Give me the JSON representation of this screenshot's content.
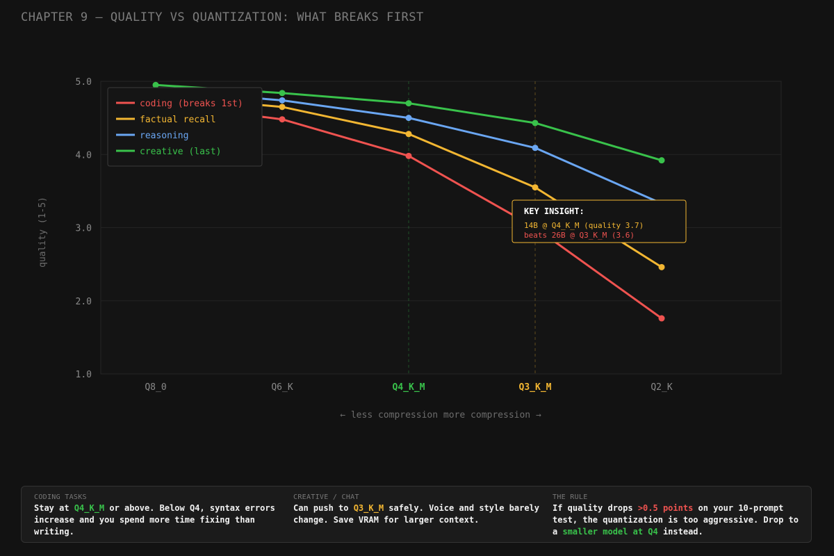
{
  "page": {
    "title": "CHAPTER 9 — QUALITY VS QUANTIZATION: WHAT BREAKS FIRST"
  },
  "chart_data": {
    "type": "line",
    "title": "",
    "categories": [
      "Q8_0",
      "Q6_K",
      "Q4_K_M",
      "Q3_K_M",
      "Q2_K"
    ],
    "highlighted_categories": [
      {
        "category": "Q4_K_M",
        "color": "#39c24b"
      },
      {
        "category": "Q3_K_M",
        "color": "#f2b632"
      }
    ],
    "ylabel": "quality (1-5)",
    "ylim": [
      1.0,
      5.0
    ],
    "yticks": [
      1.0,
      2.0,
      3.0,
      4.0,
      5.0
    ],
    "ytick_labels": [
      "1.0",
      "2.0",
      "3.0",
      "4.0",
      "5.0"
    ],
    "x_caption_left": "← less compression",
    "x_caption_right": "more compression →",
    "grid": true,
    "legend_position": "top-left",
    "series": [
      {
        "name": "coding (breaks 1st)",
        "color": "#ef5350",
        "values": [
          4.7,
          4.48,
          3.98,
          3.0,
          1.76
        ]
      },
      {
        "name": "factual recall",
        "color": "#f2b632",
        "values": [
          4.8,
          4.65,
          4.28,
          3.55,
          2.46
        ]
      },
      {
        "name": "reasoning",
        "color": "#6aa6f2",
        "values": [
          4.88,
          4.74,
          4.5,
          4.09,
          3.33
        ]
      },
      {
        "name": "creative (last)",
        "color": "#39c24b",
        "values": [
          4.95,
          4.84,
          4.7,
          4.43,
          3.92
        ]
      }
    ],
    "annotation": {
      "title": "KEY INSIGHT:",
      "line1": "14B @ Q4_K_M (quality 3.7)",
      "line2": "beats 26B @ Q3_K_M (3.6)",
      "border_color": "#f2b632"
    }
  },
  "footer": {
    "columns": [
      {
        "label": "CODING TASKS",
        "segments": [
          {
            "text": "Stay at ",
            "style": ""
          },
          {
            "text": "Q4_K_M",
            "style": "green"
          },
          {
            "text": " or above. Below Q4, syntax errors increase and you spend more time fixing than writing.",
            "style": ""
          }
        ]
      },
      {
        "label": "CREATIVE / CHAT",
        "segments": [
          {
            "text": "Can push to ",
            "style": ""
          },
          {
            "text": "Q3_K_M",
            "style": "yellow"
          },
          {
            "text": " safely. Voice and style barely change. Save VRAM for larger context.",
            "style": ""
          }
        ]
      },
      {
        "label": "THE RULE",
        "segments": [
          {
            "text": "If quality drops ",
            "style": ""
          },
          {
            "text": ">0.5 points",
            "style": "red"
          },
          {
            "text": " on your 10-prompt test, the quantization is too aggressive. Drop to a ",
            "style": ""
          },
          {
            "text": "smaller model at Q4",
            "style": "green"
          },
          {
            "text": " instead.",
            "style": ""
          }
        ]
      }
    ]
  }
}
